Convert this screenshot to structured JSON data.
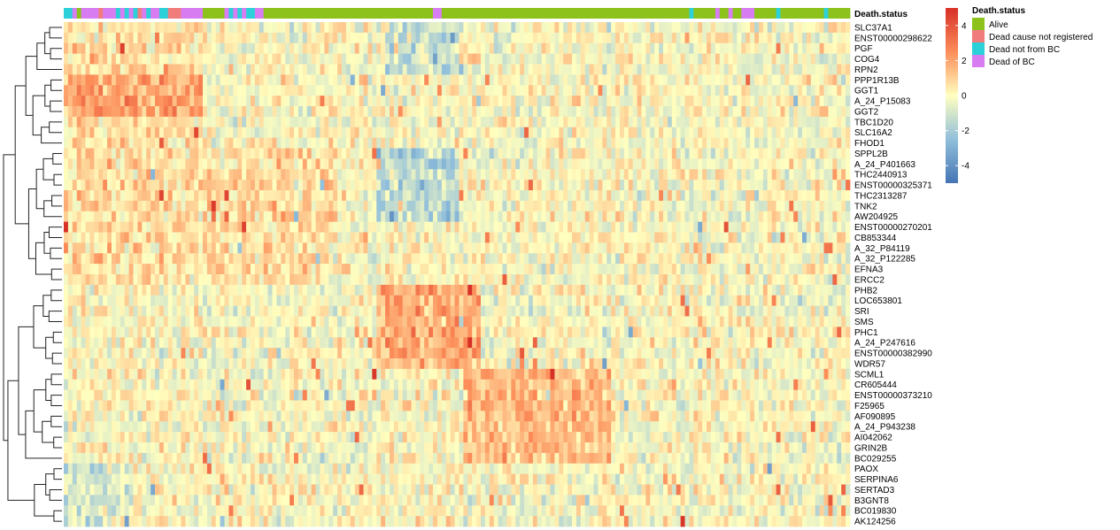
{
  "chart_data": {
    "type": "heatmap",
    "title": "",
    "annotation_title": "Death.status",
    "legend_title": "Death.status",
    "genes": [
      "SLC37A1",
      "ENST00000298622",
      "PGF",
      "COG4",
      "RPN2",
      "PPP1R13B",
      "GGT1",
      "A_24_P15083",
      "GGT2",
      "TBC1D20",
      "SLC16A2",
      "FHOD1",
      "SPPL2B",
      "A_24_P401663",
      "THC2440913",
      "ENST00000325371",
      "THC2313287",
      "TNK2",
      "AW204925",
      "ENST00000270201",
      "CB853344",
      "A_32_P84119",
      "A_32_P122285",
      "EFNA3",
      "ERCC2",
      "PHB2",
      "LOC653801",
      "SRI",
      "SMS",
      "PHC1",
      "A_24_P247616",
      "ENST00000382990",
      "WDR57",
      "SCML1",
      "CR605444",
      "ENST00000373210",
      "F25965",
      "AF090895",
      "A_24_P943238",
      "AI042062",
      "GRIN2B",
      "BC029255",
      "PAOX",
      "SERPINA6",
      "SERTAD3",
      "B3GNT8",
      "BC019830",
      "AK124256"
    ],
    "status_levels": [
      {
        "name": "Alive",
        "color": "#8CC21B"
      },
      {
        "name": "Dead cause not registered",
        "color": "#F07C7C"
      },
      {
        "name": "Dead not from BC",
        "color": "#2BD0D8"
      },
      {
        "name": "Dead of BC",
        "color": "#D87CF2"
      }
    ],
    "sample_status": [
      2,
      2,
      3,
      0,
      3,
      3,
      3,
      3,
      1,
      3,
      3,
      3,
      2,
      3,
      2,
      3,
      2,
      1,
      3,
      2,
      3,
      3,
      2,
      2,
      1,
      1,
      1,
      3,
      3,
      3,
      3,
      3,
      0,
      0,
      0,
      0,
      0,
      3,
      2,
      3,
      2,
      3,
      2,
      2,
      3,
      3,
      0,
      0,
      0,
      0,
      0,
      0,
      0,
      0,
      0,
      0,
      0,
      0,
      0,
      0,
      0,
      0,
      0,
      0,
      0,
      0,
      0,
      0,
      0,
      0,
      0,
      0,
      0,
      0,
      0,
      0,
      0,
      0,
      0,
      0,
      0,
      0,
      0,
      0,
      0,
      3,
      3,
      0,
      0,
      0,
      0,
      0,
      0,
      0,
      0,
      0,
      0,
      0,
      0,
      0,
      0,
      0,
      0,
      0,
      0,
      0,
      0,
      0,
      0,
      0,
      0,
      0,
      0,
      0,
      0,
      0,
      0,
      0,
      0,
      0,
      0,
      0,
      0,
      0,
      0,
      0,
      0,
      0,
      0,
      0,
      0,
      0,
      0,
      0,
      0,
      0,
      0,
      0,
      0,
      0,
      0,
      0,
      0,
      0,
      2,
      0,
      0,
      0,
      0,
      0,
      3,
      0,
      0,
      3,
      0,
      0,
      3,
      3,
      3,
      0,
      0,
      0,
      0,
      0,
      2,
      0,
      0,
      0,
      0,
      0,
      0,
      0,
      0,
      0,
      0,
      2,
      0,
      0,
      0,
      0,
      0
    ],
    "color_scale": {
      "min": -5,
      "max": 5,
      "stops": [
        {
          "value": -5,
          "color": "#4575B4"
        },
        {
          "value": -2.5,
          "color": "#91BFDB"
        },
        {
          "value": 0,
          "color": "#FFFFBF"
        },
        {
          "value": 2.5,
          "color": "#FC8D59"
        },
        {
          "value": 5,
          "color": "#D73027"
        }
      ],
      "ticks": [
        4,
        2,
        0,
        -2,
        -4
      ],
      "tick_labels": [
        "4",
        "2",
        "0",
        "-2",
        "-4"
      ]
    },
    "clustering": {
      "rows": true,
      "columns": true
    },
    "blocks": [
      {
        "rows": [
          0,
          11
        ],
        "cols": [
          0,
          31
        ],
        "value": 0.6
      },
      {
        "rows": [
          5,
          8
        ],
        "cols": [
          0,
          31
        ],
        "value": 1.4
      },
      {
        "rows": [
          0,
          4
        ],
        "cols": [
          74,
          90
        ],
        "value": -1.2
      },
      {
        "rows": [
          12,
          18
        ],
        "cols": [
          0,
          62
        ],
        "value": 0.8
      },
      {
        "rows": [
          12,
          18
        ],
        "cols": [
          72,
          90
        ],
        "value": -1.6
      },
      {
        "rows": [
          19,
          24
        ],
        "cols": [
          0,
          60
        ],
        "value": 0.7
      },
      {
        "rows": [
          25,
          32
        ],
        "cols": [
          72,
          95
        ],
        "value": 1.8
      },
      {
        "rows": [
          33,
          41
        ],
        "cols": [
          92,
          125
        ],
        "value": 1.5
      },
      {
        "rows": [
          42,
          47
        ],
        "cols": [
          0,
          12
        ],
        "value": -1.0
      }
    ]
  }
}
